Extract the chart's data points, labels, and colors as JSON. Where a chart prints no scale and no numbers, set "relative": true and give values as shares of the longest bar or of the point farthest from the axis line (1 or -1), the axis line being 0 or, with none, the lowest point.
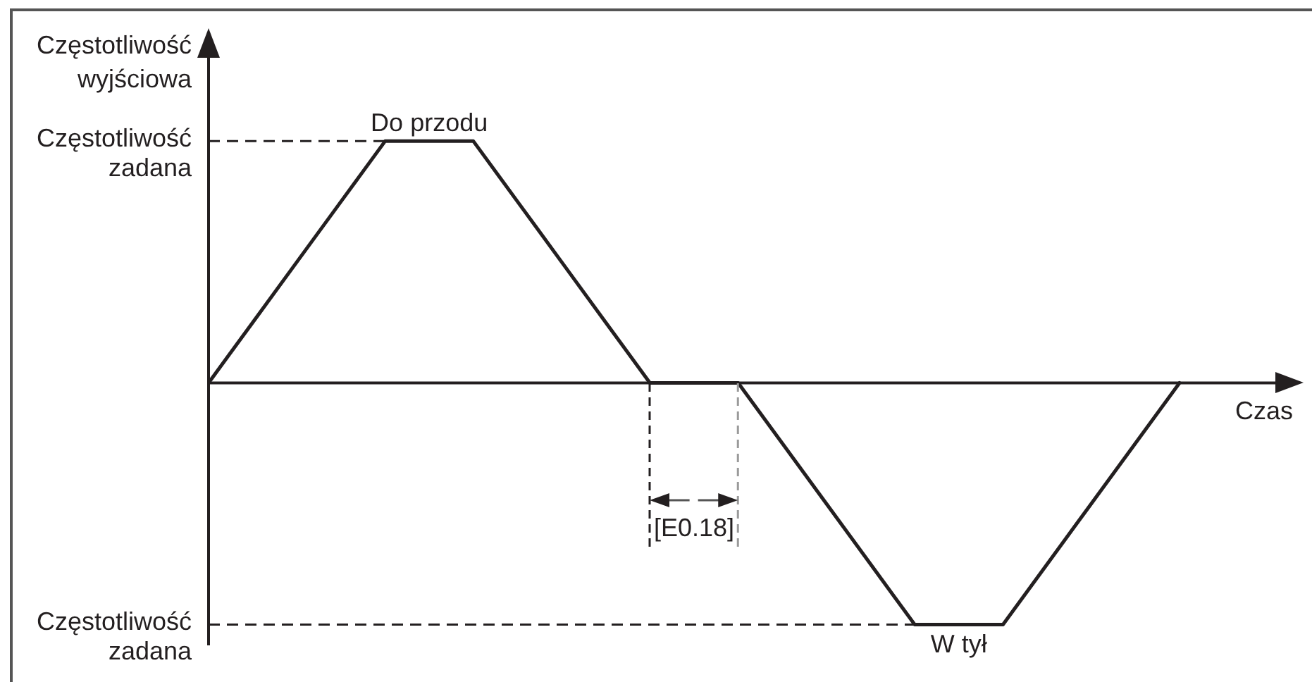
{
  "chart_data": {
    "type": "line",
    "relative": true,
    "ylabel": "Częstotliwość wyjściowa",
    "xlabel": "Czas",
    "categories": [
      null,
      null,
      null,
      null,
      null,
      null,
      null,
      null,
      null,
      null,
      null,
      null,
      null,
      null,
      null,
      null,
      null,
      null,
      null,
      null,
      null,
      null,
      null
    ],
    "values": [
      0,
      0.25,
      0.5,
      0.75,
      1,
      1,
      1,
      0.75,
      0.5,
      0.25,
      0,
      0,
      0,
      -0.25,
      -0.5,
      -0.75,
      -1,
      -1,
      -1,
      -0.75,
      -0.5,
      -0.25,
      0
    ],
    "color": "#231f20",
    "marker": "none",
    "ref_lines": [
      {
        "axis": "y",
        "value": 1,
        "label": "Częstotliwość zadana",
        "line_style": "dashed",
        "color": "#231f20"
      },
      {
        "axis": "y",
        "value": -1,
        "label": "Częstotliwość zadana",
        "line_style": "dashed",
        "color": "#231f20"
      }
    ],
    "annotations": [
      {
        "text": "Do przodu",
        "y": 1
      },
      {
        "text": "W tył",
        "y": -1
      },
      "[E0.18]"
    ]
  }
}
